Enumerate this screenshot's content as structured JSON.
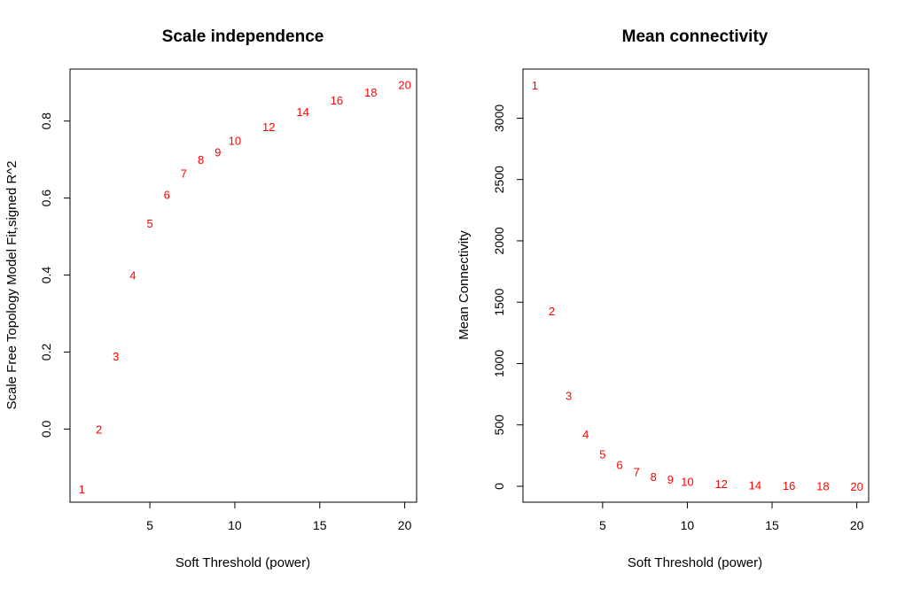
{
  "chart_data": [
    {
      "type": "scatter",
      "title": "Scale independence",
      "xlabel": "Soft Threshold (power)",
      "ylabel": "Scale Free Topology Model Fit,signed R^2",
      "xlim": [
        0.3,
        20.7
      ],
      "ylim": [
        -0.19,
        0.935
      ],
      "xticks": [
        5,
        10,
        15,
        20
      ],
      "yticks": [
        0.0,
        0.2,
        0.4,
        0.6,
        0.8
      ],
      "ytick_labels": [
        "0.0",
        "0.2",
        "0.4",
        "0.6",
        "0.8"
      ],
      "marker": "text",
      "point_color": "#ff0000",
      "grid": false,
      "points": [
        {
          "x": 1,
          "y": -0.155,
          "label": "1"
        },
        {
          "x": 2,
          "y": 0.0,
          "label": "2"
        },
        {
          "x": 3,
          "y": 0.19,
          "label": "3"
        },
        {
          "x": 4,
          "y": 0.4,
          "label": "4"
        },
        {
          "x": 5,
          "y": 0.535,
          "label": "5"
        },
        {
          "x": 6,
          "y": 0.61,
          "label": "6"
        },
        {
          "x": 7,
          "y": 0.665,
          "label": "7"
        },
        {
          "x": 8,
          "y": 0.7,
          "label": "8"
        },
        {
          "x": 9,
          "y": 0.72,
          "label": "9"
        },
        {
          "x": 10,
          "y": 0.75,
          "label": "10"
        },
        {
          "x": 12,
          "y": 0.785,
          "label": "12"
        },
        {
          "x": 14,
          "y": 0.825,
          "label": "14"
        },
        {
          "x": 16,
          "y": 0.855,
          "label": "16"
        },
        {
          "x": 18,
          "y": 0.875,
          "label": "18"
        },
        {
          "x": 20,
          "y": 0.895,
          "label": "20"
        }
      ]
    },
    {
      "type": "scatter",
      "title": "Mean connectivity",
      "xlabel": "Soft Threshold (power)",
      "ylabel": "Mean Connectivity",
      "xlim": [
        0.3,
        20.7
      ],
      "ylim": [
        -130,
        3400
      ],
      "xticks": [
        5,
        10,
        15,
        20
      ],
      "yticks": [
        0,
        500,
        1000,
        1500,
        2000,
        2500,
        3000
      ],
      "ytick_labels": [
        "0",
        "500",
        "1000",
        "1500",
        "2000",
        "2500",
        "3000"
      ],
      "marker": "text",
      "point_color": "#ff0000",
      "grid": false,
      "points": [
        {
          "x": 1,
          "y": 3270,
          "label": "1"
        },
        {
          "x": 2,
          "y": 1430,
          "label": "2"
        },
        {
          "x": 3,
          "y": 740,
          "label": "3"
        },
        {
          "x": 4,
          "y": 425,
          "label": "4"
        },
        {
          "x": 5,
          "y": 265,
          "label": "5"
        },
        {
          "x": 6,
          "y": 175,
          "label": "6"
        },
        {
          "x": 7,
          "y": 120,
          "label": "7"
        },
        {
          "x": 8,
          "y": 80,
          "label": "8"
        },
        {
          "x": 9,
          "y": 58,
          "label": "9"
        },
        {
          "x": 10,
          "y": 40,
          "label": "10"
        },
        {
          "x": 12,
          "y": 22,
          "label": "12"
        },
        {
          "x": 14,
          "y": 12,
          "label": "14"
        },
        {
          "x": 16,
          "y": 6,
          "label": "16"
        },
        {
          "x": 18,
          "y": 3,
          "label": "18"
        },
        {
          "x": 20,
          "y": 1,
          "label": "20"
        }
      ]
    }
  ]
}
